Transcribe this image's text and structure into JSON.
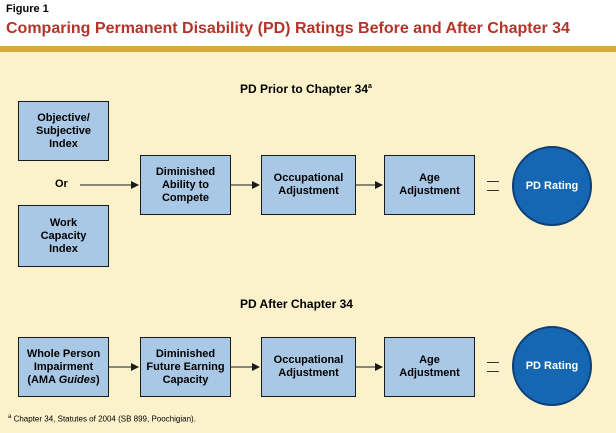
{
  "figure": {
    "label": "Figure 1",
    "title": "Comparing Permanent Disability (PD) Ratings Before and After Chapter 34"
  },
  "before": {
    "heading": "PD Prior to Chapter 34",
    "heading_mark": "a",
    "index_objective": [
      "Objective/",
      "Subjective",
      "Index"
    ],
    "or_label": "Or",
    "index_work": [
      "Work",
      "Capacity",
      "Index"
    ],
    "diminished": [
      "Diminished",
      "Ability to",
      "Compete"
    ],
    "occupational": [
      "Occupational",
      "Adjustment"
    ],
    "age": [
      "Age",
      "Adjustment"
    ],
    "result": "PD Rating"
  },
  "after": {
    "heading": "PD After Chapter 34",
    "impairment": [
      "Whole Person",
      "Impairment"
    ],
    "impairment_paren_open": "(AMA ",
    "impairment_guides": "Guides",
    "impairment_paren_close": ")",
    "diminished": [
      "Diminished",
      "Future Earning",
      "Capacity"
    ],
    "occupational": [
      "Occupational",
      "Adjustment"
    ],
    "age": [
      "Age",
      "Adjustment"
    ],
    "result": "PD Rating"
  },
  "footnote": {
    "mark": "a",
    "text": "Chapter 34, Statutes of 2004 (SB 899, Poochigian)."
  }
}
